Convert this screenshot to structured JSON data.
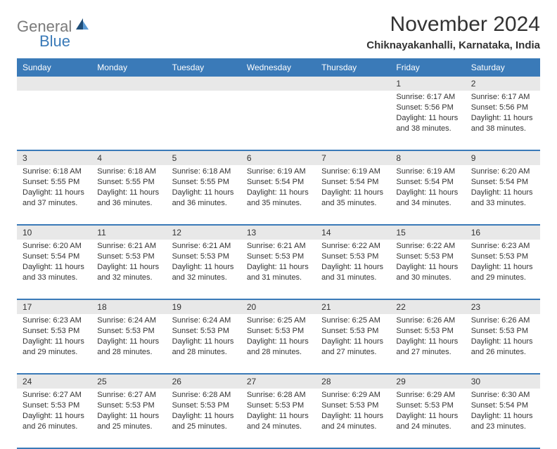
{
  "brand": {
    "name_gray": "General",
    "name_blue": "Blue"
  },
  "title": "November 2024",
  "location": "Chiknayakanhalli, Karnataka, India",
  "day_headers": [
    "Sunday",
    "Monday",
    "Tuesday",
    "Wednesday",
    "Thursday",
    "Friday",
    "Saturday"
  ],
  "colors": {
    "header_bg": "#3a7ab8",
    "daynum_bg": "#e8e8e8",
    "border": "#3a7ab8",
    "text": "#333333",
    "logo_gray": "#7a7a7a",
    "logo_blue": "#3a7ab8",
    "bg": "#ffffff"
  },
  "fonts": {
    "title_size": 30,
    "location_size": 15,
    "header_size": 12,
    "daynum_size": 12,
    "cell_size": 11
  },
  "weeks": [
    {
      "daynums": [
        "",
        "",
        "",
        "",
        "",
        "1",
        "2"
      ],
      "cells": [
        {},
        {},
        {},
        {},
        {},
        {
          "sunrise": "Sunrise: 6:17 AM",
          "sunset": "Sunset: 5:56 PM",
          "day1": "Daylight: 11 hours",
          "day2": "and 38 minutes."
        },
        {
          "sunrise": "Sunrise: 6:17 AM",
          "sunset": "Sunset: 5:56 PM",
          "day1": "Daylight: 11 hours",
          "day2": "and 38 minutes."
        }
      ]
    },
    {
      "daynums": [
        "3",
        "4",
        "5",
        "6",
        "7",
        "8",
        "9"
      ],
      "cells": [
        {
          "sunrise": "Sunrise: 6:18 AM",
          "sunset": "Sunset: 5:55 PM",
          "day1": "Daylight: 11 hours",
          "day2": "and 37 minutes."
        },
        {
          "sunrise": "Sunrise: 6:18 AM",
          "sunset": "Sunset: 5:55 PM",
          "day1": "Daylight: 11 hours",
          "day2": "and 36 minutes."
        },
        {
          "sunrise": "Sunrise: 6:18 AM",
          "sunset": "Sunset: 5:55 PM",
          "day1": "Daylight: 11 hours",
          "day2": "and 36 minutes."
        },
        {
          "sunrise": "Sunrise: 6:19 AM",
          "sunset": "Sunset: 5:54 PM",
          "day1": "Daylight: 11 hours",
          "day2": "and 35 minutes."
        },
        {
          "sunrise": "Sunrise: 6:19 AM",
          "sunset": "Sunset: 5:54 PM",
          "day1": "Daylight: 11 hours",
          "day2": "and 35 minutes."
        },
        {
          "sunrise": "Sunrise: 6:19 AM",
          "sunset": "Sunset: 5:54 PM",
          "day1": "Daylight: 11 hours",
          "day2": "and 34 minutes."
        },
        {
          "sunrise": "Sunrise: 6:20 AM",
          "sunset": "Sunset: 5:54 PM",
          "day1": "Daylight: 11 hours",
          "day2": "and 33 minutes."
        }
      ]
    },
    {
      "daynums": [
        "10",
        "11",
        "12",
        "13",
        "14",
        "15",
        "16"
      ],
      "cells": [
        {
          "sunrise": "Sunrise: 6:20 AM",
          "sunset": "Sunset: 5:54 PM",
          "day1": "Daylight: 11 hours",
          "day2": "and 33 minutes."
        },
        {
          "sunrise": "Sunrise: 6:21 AM",
          "sunset": "Sunset: 5:53 PM",
          "day1": "Daylight: 11 hours",
          "day2": "and 32 minutes."
        },
        {
          "sunrise": "Sunrise: 6:21 AM",
          "sunset": "Sunset: 5:53 PM",
          "day1": "Daylight: 11 hours",
          "day2": "and 32 minutes."
        },
        {
          "sunrise": "Sunrise: 6:21 AM",
          "sunset": "Sunset: 5:53 PM",
          "day1": "Daylight: 11 hours",
          "day2": "and 31 minutes."
        },
        {
          "sunrise": "Sunrise: 6:22 AM",
          "sunset": "Sunset: 5:53 PM",
          "day1": "Daylight: 11 hours",
          "day2": "and 31 minutes."
        },
        {
          "sunrise": "Sunrise: 6:22 AM",
          "sunset": "Sunset: 5:53 PM",
          "day1": "Daylight: 11 hours",
          "day2": "and 30 minutes."
        },
        {
          "sunrise": "Sunrise: 6:23 AM",
          "sunset": "Sunset: 5:53 PM",
          "day1": "Daylight: 11 hours",
          "day2": "and 29 minutes."
        }
      ]
    },
    {
      "daynums": [
        "17",
        "18",
        "19",
        "20",
        "21",
        "22",
        "23"
      ],
      "cells": [
        {
          "sunrise": "Sunrise: 6:23 AM",
          "sunset": "Sunset: 5:53 PM",
          "day1": "Daylight: 11 hours",
          "day2": "and 29 minutes."
        },
        {
          "sunrise": "Sunrise: 6:24 AM",
          "sunset": "Sunset: 5:53 PM",
          "day1": "Daylight: 11 hours",
          "day2": "and 28 minutes."
        },
        {
          "sunrise": "Sunrise: 6:24 AM",
          "sunset": "Sunset: 5:53 PM",
          "day1": "Daylight: 11 hours",
          "day2": "and 28 minutes."
        },
        {
          "sunrise": "Sunrise: 6:25 AM",
          "sunset": "Sunset: 5:53 PM",
          "day1": "Daylight: 11 hours",
          "day2": "and 28 minutes."
        },
        {
          "sunrise": "Sunrise: 6:25 AM",
          "sunset": "Sunset: 5:53 PM",
          "day1": "Daylight: 11 hours",
          "day2": "and 27 minutes."
        },
        {
          "sunrise": "Sunrise: 6:26 AM",
          "sunset": "Sunset: 5:53 PM",
          "day1": "Daylight: 11 hours",
          "day2": "and 27 minutes."
        },
        {
          "sunrise": "Sunrise: 6:26 AM",
          "sunset": "Sunset: 5:53 PM",
          "day1": "Daylight: 11 hours",
          "day2": "and 26 minutes."
        }
      ]
    },
    {
      "daynums": [
        "24",
        "25",
        "26",
        "27",
        "28",
        "29",
        "30"
      ],
      "cells": [
        {
          "sunrise": "Sunrise: 6:27 AM",
          "sunset": "Sunset: 5:53 PM",
          "day1": "Daylight: 11 hours",
          "day2": "and 26 minutes."
        },
        {
          "sunrise": "Sunrise: 6:27 AM",
          "sunset": "Sunset: 5:53 PM",
          "day1": "Daylight: 11 hours",
          "day2": "and 25 minutes."
        },
        {
          "sunrise": "Sunrise: 6:28 AM",
          "sunset": "Sunset: 5:53 PM",
          "day1": "Daylight: 11 hours",
          "day2": "and 25 minutes."
        },
        {
          "sunrise": "Sunrise: 6:28 AM",
          "sunset": "Sunset: 5:53 PM",
          "day1": "Daylight: 11 hours",
          "day2": "and 24 minutes."
        },
        {
          "sunrise": "Sunrise: 6:29 AM",
          "sunset": "Sunset: 5:53 PM",
          "day1": "Daylight: 11 hours",
          "day2": "and 24 minutes."
        },
        {
          "sunrise": "Sunrise: 6:29 AM",
          "sunset": "Sunset: 5:53 PM",
          "day1": "Daylight: 11 hours",
          "day2": "and 24 minutes."
        },
        {
          "sunrise": "Sunrise: 6:30 AM",
          "sunset": "Sunset: 5:54 PM",
          "day1": "Daylight: 11 hours",
          "day2": "and 23 minutes."
        }
      ]
    }
  ]
}
